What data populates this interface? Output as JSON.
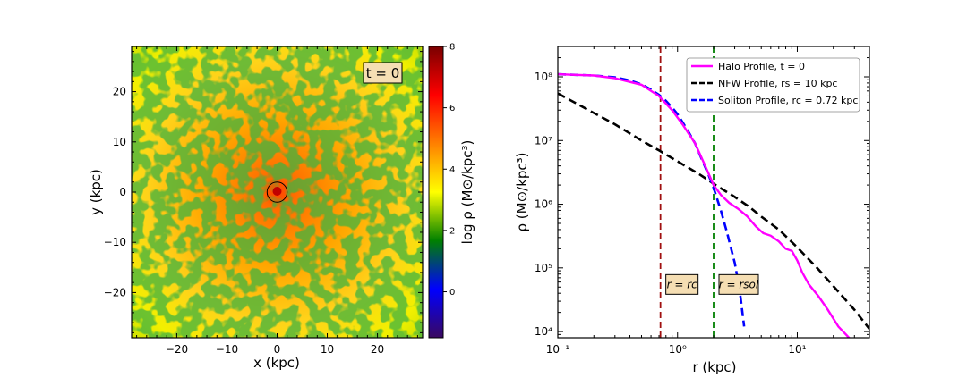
{
  "chart_data": [
    {
      "type": "heatmap",
      "title": "",
      "annotation": "t = 0",
      "xlabel": "x (kpc)",
      "ylabel": "y (kpc)",
      "xlim": [
        -29,
        29
      ],
      "ylim": [
        -29,
        29
      ],
      "xticks": [
        -20,
        -10,
        0,
        10,
        20
      ],
      "yticks": [
        -20,
        -10,
        0,
        10,
        20
      ],
      "colorbar": {
        "label": "log ρ (M⊙/kpc³)",
        "range": [
          -1.5,
          8
        ],
        "ticks": [
          0,
          2,
          4,
          6,
          8
        ],
        "colormap": [
          "#3a0860",
          "#0000ff",
          "#008000",
          "#ffff00",
          "#ff8000",
          "#ff0000",
          "#7a0000"
        ]
      },
      "core_marker": {
        "x": 0,
        "y": 0,
        "radius": 2
      }
    },
    {
      "type": "line",
      "title": "",
      "xlabel": "r (kpc)",
      "ylabel": "ρ (M⊙/kpc³)",
      "xscale": "log",
      "yscale": "log",
      "xlim": [
        0.1,
        40
      ],
      "ylim": [
        8000,
        300000000
      ],
      "xticks": [
        0.1,
        1,
        10
      ],
      "xtick_labels": [
        "10⁻¹",
        "10⁰",
        "10¹"
      ],
      "yticks": [
        10000,
        100000,
        1000000,
        10000000,
        100000000
      ],
      "ytick_labels": [
        "10⁴",
        "10⁵",
        "10⁶",
        "10⁷",
        "10⁸"
      ],
      "legend_position": "top-right",
      "series": [
        {
          "name": "Halo Profile, t = 0",
          "color": "#ff00ff",
          "style": "solid",
          "x": [
            0.1,
            0.2,
            0.3,
            0.5,
            0.7,
            0.9,
            1.1,
            1.4,
            1.7,
            2.0,
            2.3,
            2.7,
            3.2,
            3.8,
            4.5,
            5.2,
            6.0,
            7.0,
            8.0,
            9.0,
            10.0,
            11.0,
            12.5,
            15.0,
            18.0,
            22.0,
            27.0,
            30.0
          ],
          "y": [
            110000000,
            105000000,
            95000000,
            75000000,
            50000000,
            30000000,
            18000000,
            9000000,
            4000000,
            2000000,
            1400000,
            1050000,
            850000,
            650000,
            450000,
            350000,
            320000,
            260000,
            200000,
            185000,
            130000,
            85000,
            55000,
            36000,
            22000,
            12000,
            8000,
            7000
          ]
        },
        {
          "name": "NFW Profile, rs = 10 kpc",
          "color": "#000000",
          "style": "dashed",
          "x": [
            0.1,
            0.2,
            0.3,
            0.5,
            0.7,
            1.0,
            1.5,
            2.0,
            3.0,
            4.0,
            5.0,
            7.0,
            10.0,
            15.0,
            20.0,
            30.0,
            40.0
          ],
          "y": [
            55000000,
            27000000,
            18000000,
            10000000,
            7000000,
            4700000,
            3000000,
            2100000,
            1300000,
            900000,
            640000,
            400000,
            210000,
            95000,
            52000,
            22000,
            11000
          ]
        },
        {
          "name": "Soliton Profile, rc = 0.72 kpc",
          "color": "#0000ff",
          "style": "dashed",
          "x": [
            0.1,
            0.2,
            0.3,
            0.4,
            0.5,
            0.6,
            0.7,
            0.8,
            0.9,
            1.0,
            1.2,
            1.4,
            1.6,
            1.8,
            2.0,
            2.3,
            2.6,
            3.0,
            3.3,
            3.6
          ],
          "y": [
            110000000,
            105000000,
            98000000,
            88000000,
            76000000,
            63000000,
            52000000,
            42000000,
            33000000,
            26000000,
            15000000,
            9000000,
            5000000,
            3000000,
            1800000,
            800000,
            350000,
            120000,
            45000,
            12000
          ]
        }
      ],
      "vlines": [
        {
          "x": 0.72,
          "color": "#a01010",
          "label": "r = rc"
        },
        {
          "x": 2.0,
          "color": "#008000",
          "label": "r = rsol"
        }
      ]
    }
  ]
}
